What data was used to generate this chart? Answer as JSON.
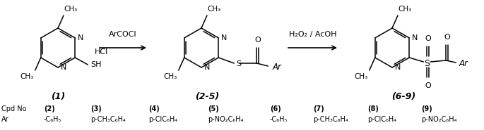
{
  "bg_color": "#ffffff",
  "fig_width": 6.85,
  "fig_height": 1.85,
  "dpi": 100,
  "label1": "(1)",
  "label2": "(2-5)",
  "label3": "(6-9)",
  "arrow1_label": "ArCOCl",
  "arrow2_label": "H₂O₂ / AcOH",
  "table_row1": [
    "Cpd No",
    "(2)",
    "(3)",
    "(4)",
    "(5)",
    "(6)",
    "(7)",
    "(8)",
    "(9)"
  ],
  "table_row2": [
    "Ar",
    "-C₆H₅",
    "p-CH₃C₆H₄",
    "p-ClC₆H₄",
    "p-NO₂C₆H₄",
    "-C₆H₅",
    "p-CH₃C₆H₄",
    "p-ClC₆H₄",
    "p-NO₂C₆H₄"
  ]
}
